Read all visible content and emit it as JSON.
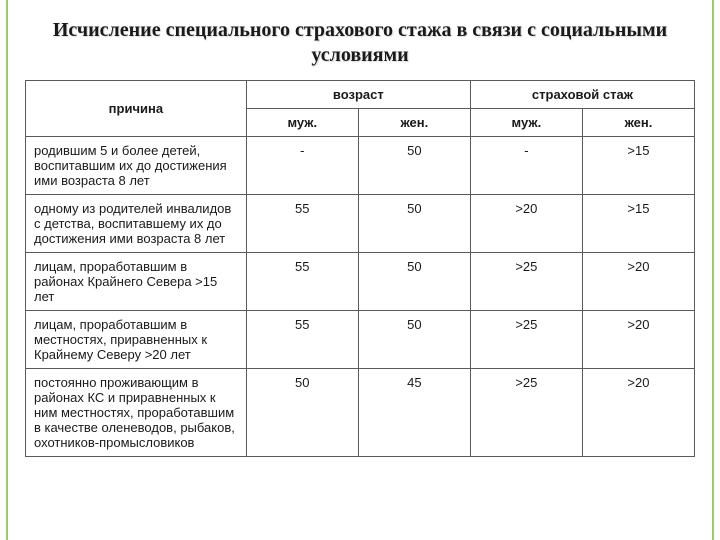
{
  "title": "Исчисление специального страхового стажа в связи с социальными условиями",
  "headers": {
    "col1": "причина",
    "col2": "возраст",
    "col3": "страховой стаж",
    "sub_m": "муж.",
    "sub_f": "жен."
  },
  "rows": [
    {
      "reason": "родившим 5 и более детей, воспитавшим их до достижения ими возраста 8 лет",
      "age_m": "-",
      "age_f": "50",
      "ins_m": "-",
      "ins_f": ">15"
    },
    {
      "reason": "одному из родителей инвалидов с детства, воспитавшему их до достижения ими возраста 8 лет",
      "age_m": "55",
      "age_f": "50",
      "ins_m": ">20",
      "ins_f": ">15"
    },
    {
      "reason": "лицам, проработавшим в районах Крайнего Севера >15 лет",
      "age_m": "55",
      "age_f": "50",
      "ins_m": ">25",
      "ins_f": ">20"
    },
    {
      "reason": "лицам, проработавшим в местностях, приравненных к Крайнему Северу >20 лет",
      "age_m": "55",
      "age_f": "50",
      "ins_m": ">25",
      "ins_f": ">20"
    },
    {
      "reason": "постоянно проживающим в районах КС и приравненных к ним местностях, проработавшим в качестве оленеводов, рыбаков, охотников-промысловиков",
      "age_m": "50",
      "age_f": "45",
      "ins_m": ">25",
      "ins_f": ">20"
    }
  ],
  "style": {
    "border_accent": "#9cc96f",
    "table_border": "#5a5a5a",
    "title_fontsize": 20,
    "body_fontsize": 13,
    "background": "#ffffff",
    "text_color": "#1a1a1a"
  }
}
